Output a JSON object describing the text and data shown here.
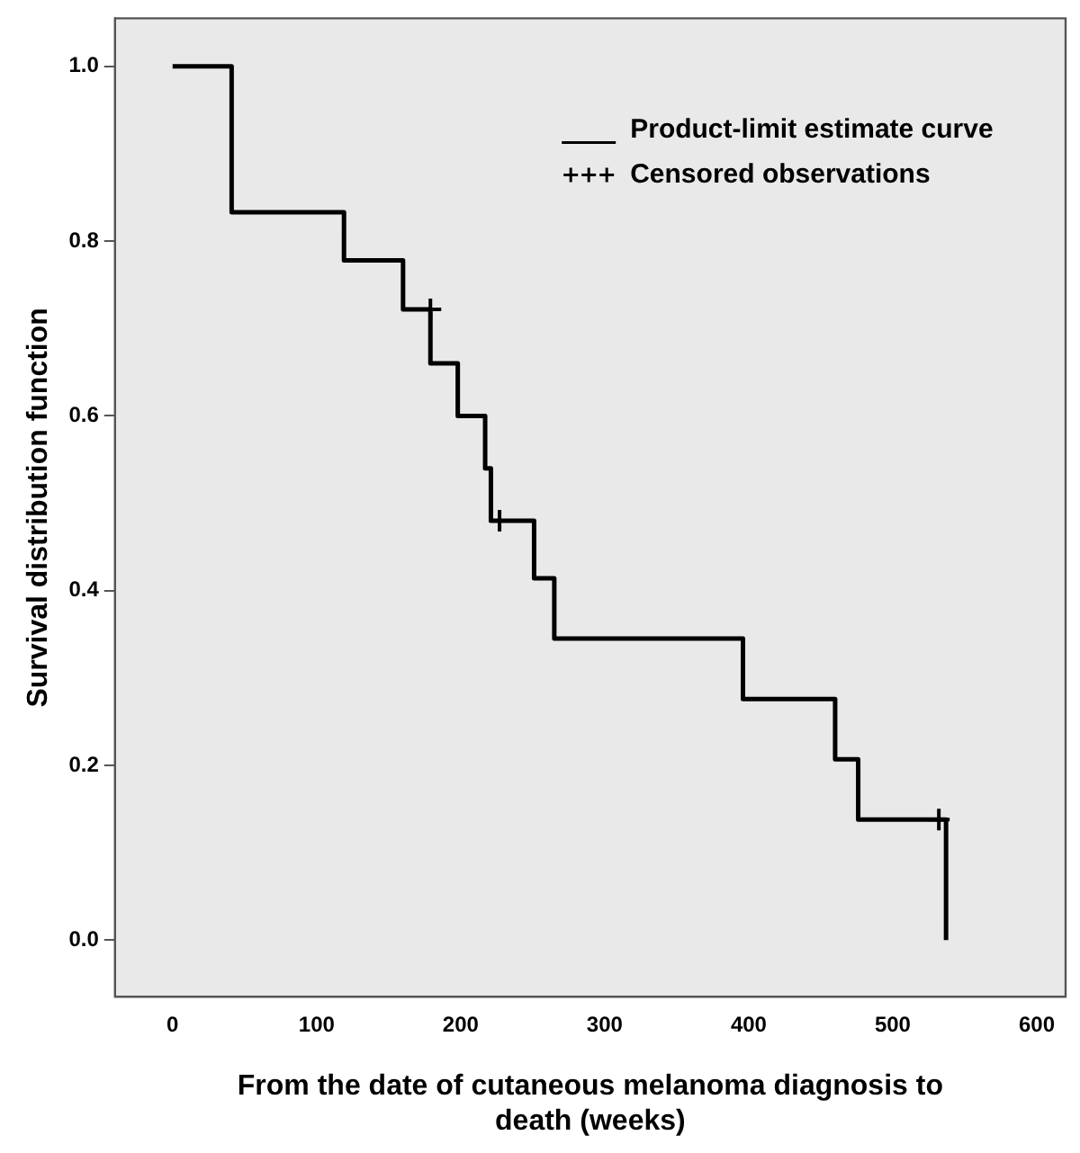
{
  "chart_data": {
    "type": "step",
    "xlabel": "From the date of cutaneous melanoma diagnosis to death (weeks)",
    "ylabel": "Survival distribution function",
    "xlim": [
      -40,
      620
    ],
    "xticks": [
      0,
      100,
      200,
      300,
      400,
      500,
      600
    ],
    "ylim": [
      -0.065,
      1.055
    ],
    "yticks": [
      {
        "value": 0,
        "label": "0.0"
      },
      {
        "value": 0.2,
        "label": "0.2"
      },
      {
        "value": 0.4,
        "label": "0.4"
      },
      {
        "value": 0.6,
        "label": "0.6"
      },
      {
        "value": 0.8,
        "label": "0.8"
      },
      {
        "value": 1,
        "label": "1.0"
      }
    ],
    "grid": false,
    "legend": "top right",
    "series": [
      {
        "name": "Product-limit estimate curve",
        "color": "#000000",
        "marker": "none",
        "x": [
          0,
          41,
          119,
          160,
          179,
          198,
          217,
          221,
          251,
          265,
          396,
          460,
          476,
          537
        ],
        "values": [
          1,
          0.833,
          0.778,
          0.722,
          0.66,
          0.6,
          0.54,
          0.48,
          0.414,
          0.345,
          0.276,
          0.207,
          0.138,
          0
        ]
      },
      {
        "name": "Censored observations",
        "type": "scatter",
        "color": "#000000",
        "marker": "cross",
        "x": [
          179,
          227,
          532
        ],
        "values": [
          0.722,
          0.48,
          0.138
        ]
      }
    ]
  }
}
